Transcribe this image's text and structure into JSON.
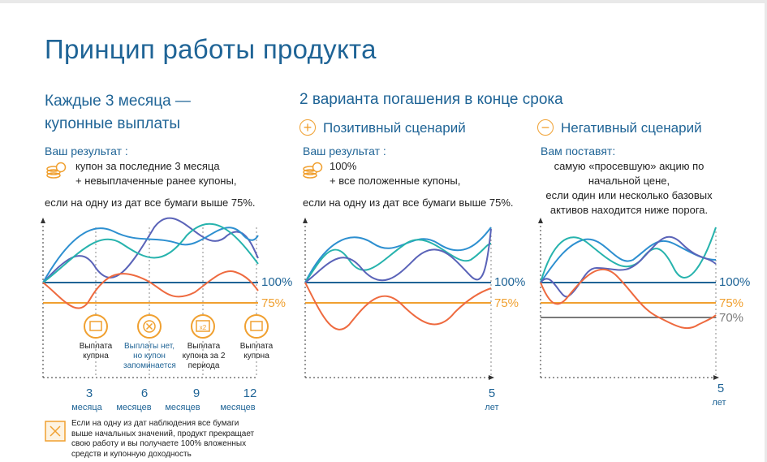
{
  "title": "Принцип работы продукта",
  "left": {
    "heading_line1": "Каждые 3 месяца —",
    "heading_line2": "купонные выплаты",
    "result_label": "Ваш результат :",
    "result_line1": "купон за последние 3 месяца",
    "result_line2": "+ невыплаченные ранее купоны,",
    "condition": "если на одну из дат все бумаги выше 75%.",
    "events": [
      {
        "label": "Выплата купона",
        "icon": "document-icon"
      },
      {
        "label": "Выплаты нет, но купон запоминается",
        "icon": "cancel-icon"
      },
      {
        "label": "Выплата купона за 2 периода",
        "icon": "double-coupon-icon",
        "badge": "x2"
      },
      {
        "label": "Выплата купона",
        "icon": "document-icon"
      }
    ],
    "x_ticks": [
      {
        "value": "3",
        "unit": "месяца"
      },
      {
        "value": "6",
        "unit": "месяцев"
      },
      {
        "value": "9",
        "unit": "месяцев"
      },
      {
        "value": "12",
        "unit": "месяцев"
      }
    ],
    "note": "Если на одну из дат наблюдения все бумаги выше начальных значений, продукт прекращает свою работу и вы получаете 100% вложенных средств и купонную доходность"
  },
  "middle": {
    "heading": "2 варианта погашения в конце срока",
    "scenario_icon": "plus-circle-icon",
    "scenario_title": "Позитивный сценарий",
    "result_label": "Ваш результат :",
    "result_line1": "100%",
    "result_line2": "+ все положенные купоны,",
    "condition": "если на одну из дат все бумаги выше 75%.",
    "x_value": "5",
    "x_unit": "лет"
  },
  "right": {
    "scenario_icon": "minus-circle-icon",
    "scenario_title": "Негативный сценарий",
    "result_label": "Вам поставят:",
    "desc_line1": "самую «просевшую» акцию по",
    "desc_line2": "начальной цене,",
    "desc_line3": "если один или несколько базовых",
    "desc_line4": "активов находится ниже порога.",
    "x_value": "5",
    "x_unit": "лет"
  },
  "levels": {
    "l100": "100%",
    "l75": "75%",
    "l70": "70%"
  },
  "colors": {
    "brand_blue": "#1f6496",
    "orange": "#f0a030",
    "red_series": "#ee6a3f",
    "teal_series": "#27b3ad",
    "blue_series": "#2d8fd0",
    "indigo_series": "#5a63b8",
    "gray_level": "#7a7a7a"
  }
}
